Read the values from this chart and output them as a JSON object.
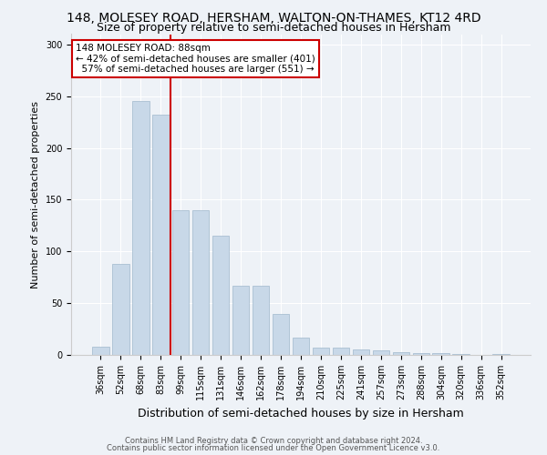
{
  "title": "148, MOLESEY ROAD, HERSHAM, WALTON-ON-THAMES, KT12 4RD",
  "subtitle": "Size of property relative to semi-detached houses in Hersham",
  "xlabel": "Distribution of semi-detached houses by size in Hersham",
  "ylabel": "Number of semi-detached properties",
  "categories": [
    "36sqm",
    "52sqm",
    "68sqm",
    "83sqm",
    "99sqm",
    "115sqm",
    "131sqm",
    "146sqm",
    "162sqm",
    "178sqm",
    "194sqm",
    "210sqm",
    "225sqm",
    "241sqm",
    "257sqm",
    "273sqm",
    "288sqm",
    "304sqm",
    "320sqm",
    "336sqm",
    "352sqm"
  ],
  "values": [
    8,
    88,
    245,
    232,
    140,
    140,
    115,
    67,
    67,
    40,
    17,
    7,
    7,
    5,
    4,
    3,
    2,
    2,
    1,
    0,
    1
  ],
  "bar_color": "#c8d8e8",
  "bar_edge_color": "#a0b8cc",
  "property_line_color": "#cc0000",
  "property_line_x": 3.5,
  "property_label": "148 MOLESEY ROAD: 88sqm",
  "smaller_pct": "42%",
  "smaller_n": "401",
  "larger_pct": "57%",
  "larger_n": "551",
  "annotation_box_facecolor": "#ffffff",
  "annotation_box_edgecolor": "#cc0000",
  "ylim": [
    0,
    310
  ],
  "yticks": [
    0,
    50,
    100,
    150,
    200,
    250,
    300
  ],
  "footer1": "Contains HM Land Registry data © Crown copyright and database right 2024.",
  "footer2": "Contains public sector information licensed under the Open Government Licence v3.0.",
  "bg_color": "#eef2f7",
  "title_fontsize": 10,
  "subtitle_fontsize": 9,
  "xlabel_fontsize": 9,
  "ylabel_fontsize": 8,
  "tick_fontsize": 7,
  "annot_fontsize": 7.5,
  "footer_fontsize": 6
}
